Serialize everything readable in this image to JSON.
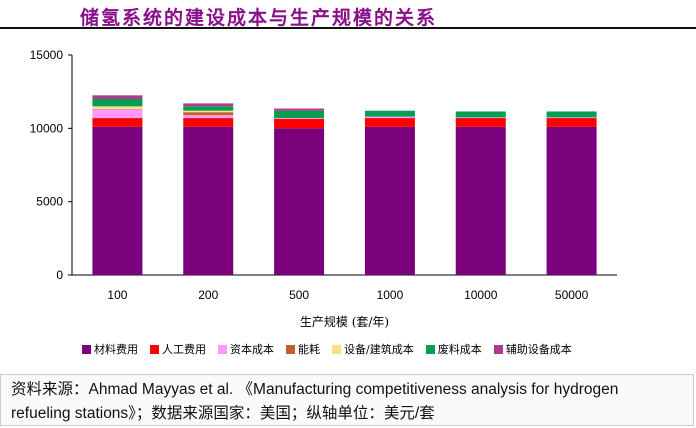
{
  "chart_data": {
    "type": "bar",
    "stacked": true,
    "title": "储氢系统的建设成本与生产规模的关系",
    "xlabel": "生产规模 (套/年)",
    "ylabel": "",
    "ylim": [
      0,
      15000
    ],
    "yticks": [
      0,
      5000,
      10000,
      15000
    ],
    "grid": false,
    "legend_position": "bottom",
    "categories": [
      "100",
      "200",
      "500",
      "1000",
      "10000",
      "50000"
    ],
    "series": [
      {
        "name": "材料费用",
        "color": "#7b007b",
        "values": [
          10100,
          10100,
          10000,
          10100,
          10100,
          10100
        ]
      },
      {
        "name": "人工费用",
        "color": "#ff0000",
        "values": [
          600,
          600,
          650,
          600,
          600,
          600
        ]
      },
      {
        "name": "资本成本",
        "color": "#ff99ff",
        "values": [
          600,
          200,
          50,
          100,
          50,
          50
        ]
      },
      {
        "name": "能耗",
        "color": "#c0602a",
        "values": [
          30,
          200,
          0,
          0,
          0,
          0
        ]
      },
      {
        "name": "设备/建筑成本",
        "color": "#ffe080",
        "values": [
          170,
          100,
          0,
          0,
          0,
          0
        ]
      },
      {
        "name": "废料成本",
        "color": "#00a050",
        "values": [
          500,
          300,
          500,
          400,
          400,
          400
        ]
      },
      {
        "name": "辅助设备成本",
        "color": "#b03890",
        "values": [
          250,
          200,
          150,
          0,
          0,
          0
        ]
      }
    ]
  },
  "footer": {
    "line1": "资料来源：Ahmad Mayyas et al. 《Manufacturing competitiveness analysis for hydrogen",
    "line2": "refueling stations》；数据来源国家：美国；纵轴单位：美元/套"
  }
}
